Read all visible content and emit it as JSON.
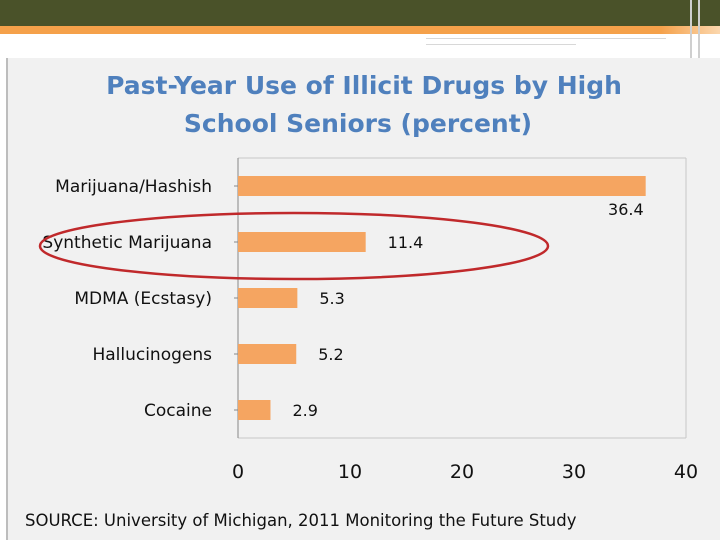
{
  "chart_data": {
    "type": "bar",
    "orientation": "horizontal",
    "title_lines": [
      "Past-Year Use of Illicit Drugs by High",
      "School Seniors (percent)"
    ],
    "categories": [
      "Marijuana/Hashish",
      "Synthetic Marijuana",
      "MDMA (Ecstasy)",
      "Hallucinogens",
      "Cocaine"
    ],
    "values": [
      36.4,
      11.4,
      5.3,
      5.2,
      2.9
    ],
    "value_labels": [
      "36.4",
      "11.4",
      "5.3",
      "5.2",
      "2.9"
    ],
    "xlim": [
      0,
      40
    ],
    "xticks": [
      "0",
      "10",
      "20",
      "30",
      "40"
    ],
    "grid": false,
    "highlighted_category": "Synthetic Marijuana",
    "source": "SOURCE: University of Michigan, 2011 Monitoring the Future Study",
    "colors": {
      "bar": "#f5a561",
      "title": "#4f80bd",
      "highlight_ellipse": "#c0292b",
      "axis": "#c8c8c8"
    }
  },
  "theme": {
    "top_bar_color": "#4a5229",
    "accent_color": "#f5a14a",
    "panel_background": "#f1f1f1"
  }
}
